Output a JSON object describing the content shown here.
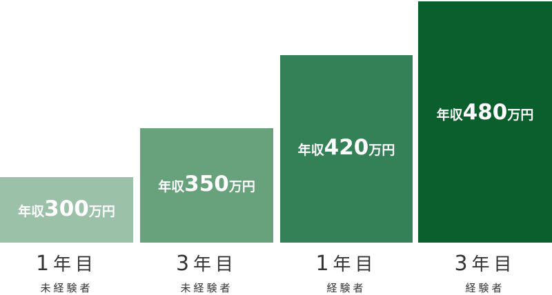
{
  "chart_data": {
    "type": "bar",
    "title": "",
    "xlabel": "",
    "ylabel": "",
    "categories": [
      {
        "years": "1",
        "unit": "年目",
        "experience": "未経験者"
      },
      {
        "years": "3",
        "unit": "年目",
        "experience": "未経験者"
      },
      {
        "years": "1",
        "unit": "年目",
        "experience": "経験者"
      },
      {
        "years": "3",
        "unit": "年目",
        "experience": "経験者"
      }
    ],
    "values": [
      300,
      350,
      420,
      480
    ],
    "value_labels": [
      {
        "prefix": "年収",
        "number": "300",
        "suffix": "万円"
      },
      {
        "prefix": "年収",
        "number": "350",
        "suffix": "万円"
      },
      {
        "prefix": "年収",
        "number": "420",
        "suffix": "万円"
      },
      {
        "prefix": "年収",
        "number": "480",
        "suffix": "万円"
      }
    ],
    "colors": [
      "#9bc2a9",
      "#67a27d",
      "#358157",
      "#0b5f2d"
    ],
    "axes_visible": false,
    "grid": false
  }
}
